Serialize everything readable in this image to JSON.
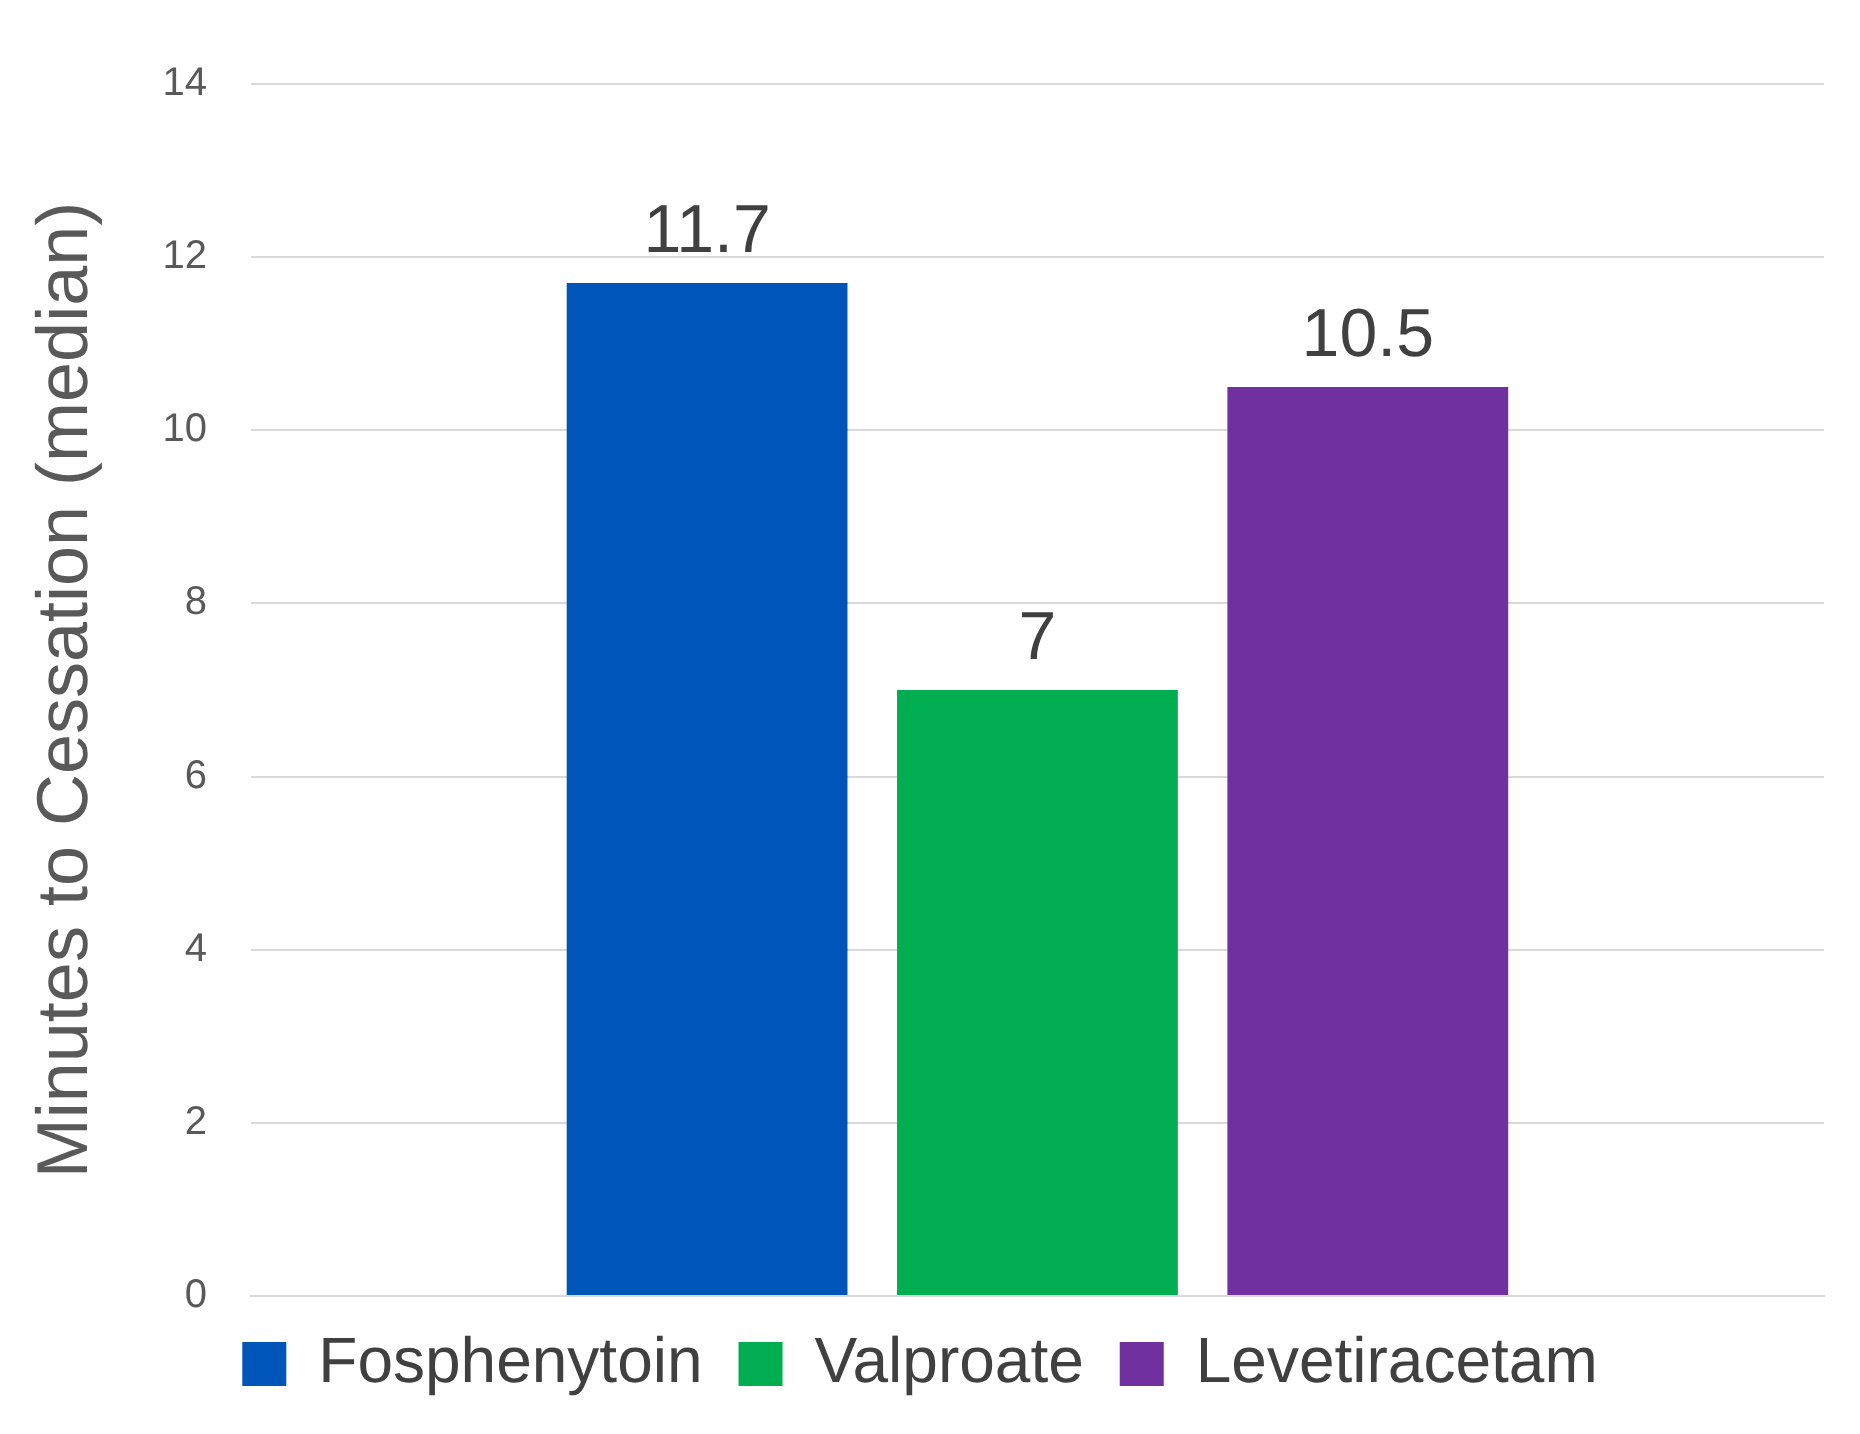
{
  "chart_data": {
    "type": "bar",
    "ylabel": "Minutes to Cessation (median)",
    "categories": [
      null
    ],
    "series": [
      {
        "name": "Fosphenytoin",
        "color": "#0056b8",
        "values": [
          11.7
        ]
      },
      {
        "name": "Valproate",
        "color": "#00ad50",
        "values": [
          7
        ]
      },
      {
        "name": "Levetiracetam",
        "color": "#7030a0",
        "values": [
          10.5
        ]
      }
    ],
    "ylim": [
      0,
      14
    ],
    "yticks": [
      0,
      2,
      4,
      6,
      8,
      10,
      12,
      14
    ],
    "grid": "y",
    "legend": "bottom",
    "data_labels": true
  }
}
